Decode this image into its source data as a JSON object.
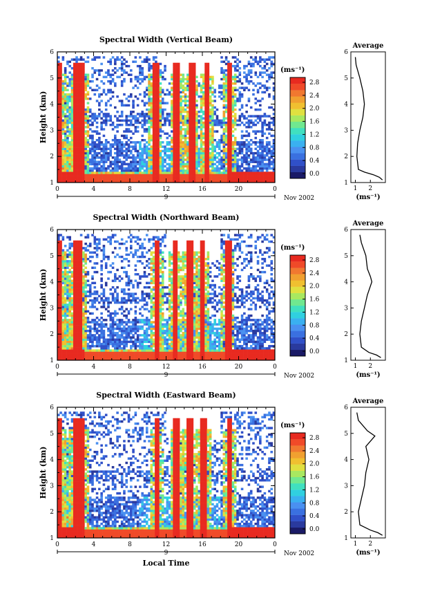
{
  "panels": [
    {
      "title": "Spectral Width (Vertical Beam)",
      "avg_title": "Average",
      "avg_xticks": [
        "1",
        "2"
      ],
      "date_label": "Nov 2002"
    },
    {
      "title": "Spectral Width (Northward Beam)",
      "avg_title": "Average",
      "avg_xticks": [
        "1",
        "2"
      ],
      "date_label": "Nov 2002"
    },
    {
      "title": "Spectral Width (Eastward Beam)",
      "avg_title": "Average",
      "avg_xticks": [
        "1",
        "2"
      ],
      "date_label": "Nov 2002"
    }
  ],
  "common": {
    "ylabel": "Height (km)",
    "yticks": [
      "1",
      "2",
      "3",
      "4",
      "5",
      "6"
    ],
    "xticks": [
      "0",
      "4",
      "8",
      "12",
      "16",
      "20",
      "0"
    ],
    "day_label": "9",
    "colorbar_unit": "(ms⁻¹)",
    "colorbar_ticks": [
      "0.0",
      "0.4",
      "0.8",
      "1.2",
      "1.6",
      "2.0",
      "2.4",
      "2.8"
    ],
    "avg_xlabel": "(ms⁻¹)",
    "xlabel_bottom": "Local Time"
  },
  "colors": {
    "palette": [
      "#1a1a66",
      "#2a3a9e",
      "#3050c8",
      "#3a70e0",
      "#4a90f0",
      "#3ab0f0",
      "#30d0e0",
      "#40e0c0",
      "#70e890",
      "#a8e860",
      "#e0e040",
      "#f0c030",
      "#f0a030",
      "#f07830",
      "#f04a28",
      "#e82a20"
    ]
  },
  "chart_data": [
    {
      "type": "heatmap",
      "title": "Spectral Width (Vertical Beam)",
      "ylabel": "Height (km)",
      "ylim": [
        1,
        6
      ],
      "xlim": [
        0,
        24
      ],
      "zlim": [
        0,
        3
      ],
      "x_unit": "local time (h), 9 Nov 2002",
      "high_width_columns_h": [
        0.2,
        2.2,
        2.6,
        10.8,
        13.2,
        14.8,
        16.5,
        19.0
      ],
      "average_profile": {
        "height_km": [
          1.1,
          1.2,
          1.3,
          1.4,
          1.5,
          2.0,
          2.5,
          3.0,
          3.5,
          4.0,
          4.5,
          5.0,
          5.5,
          5.8
        ],
        "width_ms": [
          2.8,
          2.6,
          2.2,
          1.6,
          1.2,
          1.1,
          1.15,
          1.3,
          1.5,
          1.6,
          1.5,
          1.3,
          1.05,
          1.0
        ]
      }
    },
    {
      "type": "heatmap",
      "title": "Spectral Width (Northward Beam)",
      "ylabel": "Height (km)",
      "ylim": [
        1,
        6
      ],
      "xlim": [
        0,
        24
      ],
      "zlim": [
        0,
        3
      ],
      "x_unit": "local time (h), 9 Nov 2002",
      "high_width_columns_h": [
        0.2,
        2.0,
        2.5,
        11.0,
        13.0,
        14.6,
        16.0,
        18.8
      ],
      "average_profile": {
        "height_km": [
          1.1,
          1.2,
          1.3,
          1.5,
          2.0,
          2.5,
          3.0,
          3.5,
          4.0,
          4.2,
          4.5,
          5.0,
          5.5,
          5.8
        ],
        "width_ms": [
          2.7,
          2.4,
          1.9,
          1.4,
          1.3,
          1.4,
          1.6,
          1.8,
          2.1,
          2.0,
          1.8,
          1.7,
          1.4,
          1.3
        ]
      }
    },
    {
      "type": "heatmap",
      "title": "Spectral Width (Eastward Beam)",
      "ylabel": "Height (km)",
      "xlabel": "Local Time",
      "ylim": [
        1,
        6
      ],
      "xlim": [
        0,
        24
      ],
      "zlim": [
        0,
        3
      ],
      "x_unit": "local time (h), 9 Nov 2002",
      "high_width_columns_h": [
        0.2,
        2.0,
        2.6,
        11.0,
        13.2,
        14.6,
        16.2,
        19.0
      ],
      "average_profile": {
        "height_km": [
          1.1,
          1.2,
          1.3,
          1.5,
          2.0,
          2.5,
          3.0,
          3.5,
          4.0,
          4.5,
          4.9,
          5.1,
          5.5,
          5.8
        ],
        "width_ms": [
          2.8,
          2.5,
          2.0,
          1.3,
          1.2,
          1.4,
          1.6,
          1.7,
          1.9,
          1.7,
          2.3,
          1.8,
          1.2,
          1.1
        ]
      }
    }
  ]
}
